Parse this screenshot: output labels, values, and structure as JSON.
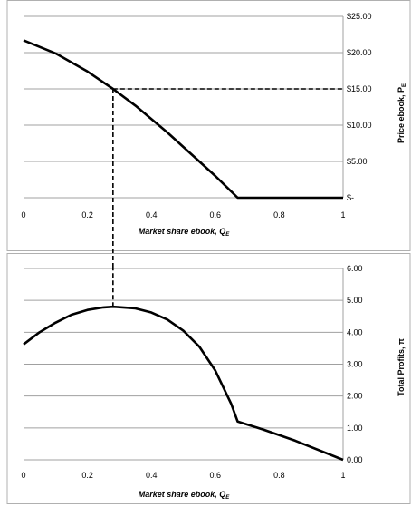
{
  "chart_data": [
    {
      "type": "line",
      "xlabel": "Market share ebook,",
      "xlabel_sym": "Q",
      "xlabel_sub": "E",
      "ylabel": "Price ebook,",
      "ylabel_sym": "P",
      "ylabel_sub": "E",
      "xlim": [
        0,
        1
      ],
      "ylim": [
        0,
        25
      ],
      "x_ticks": [
        0,
        0.2,
        0.4,
        0.6,
        0.8,
        1
      ],
      "x_tick_labels": [
        "0",
        "0.2",
        "0.4",
        "0.6",
        "0.8",
        "1"
      ],
      "y_ticks": [
        0,
        5,
        10,
        15,
        20,
        25
      ],
      "y_tick_labels": [
        "$-",
        "$5.00",
        "$10.00",
        "$15.00",
        "$20.00",
        "$25.00"
      ],
      "y_axis_side": "right",
      "grid": "horizontal",
      "series": [
        {
          "x": [
            0,
            0.1,
            0.2,
            0.28,
            0.35,
            0.45,
            0.55,
            0.6,
            0.67,
            0.75,
            0.85,
            1.0
          ],
          "y": [
            21.7,
            19.9,
            17.4,
            15.0,
            12.7,
            9.0,
            5.0,
            3.0,
            0.0,
            0.0,
            0.0,
            0.0
          ]
        }
      ],
      "reference_lines": [
        {
          "style": "dashed",
          "from": [
            0.28,
            15
          ],
          "to": [
            1,
            15
          ]
        },
        {
          "style": "dashed",
          "from": [
            0.28,
            15
          ],
          "to": [
            0.28,
            0
          ]
        }
      ]
    },
    {
      "type": "line",
      "xlabel": "Market share ebook,",
      "xlabel_sym": "Q",
      "xlabel_sub": "E",
      "ylabel": "Total Profits,",
      "ylabel_sym": "π",
      "xlim": [
        0,
        1
      ],
      "ylim": [
        0,
        6
      ],
      "x_ticks": [
        0,
        0.2,
        0.4,
        0.6,
        0.8,
        1
      ],
      "x_tick_labels": [
        "0",
        "0.2",
        "0.4",
        "0.6",
        "0.8",
        "1"
      ],
      "y_ticks": [
        0,
        1,
        2,
        3,
        4,
        5,
        6
      ],
      "y_tick_labels": [
        "0.00",
        "1.00",
        "2.00",
        "3.00",
        "4.00",
        "5.00",
        "6.00"
      ],
      "y_axis_side": "right",
      "grid": "horizontal",
      "series": [
        {
          "x": [
            0,
            0.05,
            0.1,
            0.15,
            0.2,
            0.25,
            0.28,
            0.35,
            0.4,
            0.45,
            0.5,
            0.55,
            0.6,
            0.65,
            0.67,
            0.75,
            0.85,
            1.0
          ],
          "y": [
            3.62,
            4.0,
            4.3,
            4.55,
            4.7,
            4.78,
            4.8,
            4.75,
            4.62,
            4.4,
            4.05,
            3.55,
            2.8,
            1.75,
            1.2,
            0.95,
            0.6,
            0.0
          ]
        }
      ],
      "reference_lines": [
        {
          "style": "dashed",
          "from": [
            0.28,
            4.8
          ],
          "to": [
            0.28,
            6
          ]
        }
      ]
    }
  ]
}
